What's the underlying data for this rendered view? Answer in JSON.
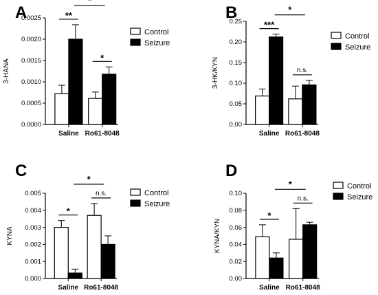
{
  "legend": {
    "control_label": "Control",
    "seizure_label": "Seizure"
  },
  "colors": {
    "control_fill": "#ffffff",
    "seizure_fill": "#000000",
    "stroke": "#000000"
  },
  "chart_data": [
    {
      "panel": "A",
      "type": "bar",
      "ylabel": "3-HANA",
      "categories": [
        "Saline",
        "Ro61-8048"
      ],
      "ylim": [
        0,
        0.0025
      ],
      "yticks": [
        "0.0000",
        "0.0005",
        "0.0010",
        "0.0015",
        "0.0020",
        "0.0025"
      ],
      "series": [
        {
          "name": "Control",
          "values": [
            0.00072,
            0.00061
          ],
          "errors": [
            0.0002,
            0.00015
          ]
        },
        {
          "name": "Seizure",
          "values": [
            0.002,
            0.00118
          ],
          "errors": [
            0.00034,
            0.00017
          ]
        }
      ],
      "significance": [
        {
          "label": "**",
          "type": "within",
          "category": 0
        },
        {
          "label": "*",
          "type": "within",
          "category": 1
        },
        {
          "label": "*",
          "type": "between"
        }
      ]
    },
    {
      "panel": "B",
      "type": "bar",
      "ylabel": "3-HK/KYN",
      "categories": [
        "Saline",
        "Ro61-8048"
      ],
      "ylim": [
        0,
        0.25
      ],
      "yticks": [
        "0.00",
        "0.05",
        "0.10",
        "0.15",
        "0.20",
        "0.25"
      ],
      "series": [
        {
          "name": "Control",
          "values": [
            0.069,
            0.062
          ],
          "errors": [
            0.017,
            0.031
          ]
        },
        {
          "name": "Seizure",
          "values": [
            0.212,
            0.096
          ],
          "errors": [
            0.007,
            0.011
          ]
        }
      ],
      "significance": [
        {
          "label": "***",
          "type": "within",
          "category": 0
        },
        {
          "label": "n.s.",
          "type": "within",
          "category": 1
        },
        {
          "label": "*",
          "type": "between"
        }
      ]
    },
    {
      "panel": "C",
      "type": "bar",
      "ylabel": "KYNA",
      "categories": [
        "Saline",
        "Ro61-8048"
      ],
      "ylim": [
        0,
        0.005
      ],
      "yticks": [
        "0.000",
        "0.001",
        "0.002",
        "0.003",
        "0.004",
        "0.005"
      ],
      "series": [
        {
          "name": "Control",
          "values": [
            0.003,
            0.0037
          ],
          "errors": [
            0.0004,
            0.0007
          ]
        },
        {
          "name": "Seizure",
          "values": [
            0.00032,
            0.002
          ],
          "errors": [
            0.00023,
            0.0005
          ]
        }
      ],
      "significance": [
        {
          "label": "*",
          "type": "within",
          "category": 0
        },
        {
          "label": "n.s.",
          "type": "within",
          "category": 1
        },
        {
          "label": "*",
          "type": "between"
        }
      ]
    },
    {
      "panel": "D",
      "type": "bar",
      "ylabel": "KYNA/KYN",
      "categories": [
        "Saline",
        "Ro61-8048"
      ],
      "ylim": [
        0,
        0.1
      ],
      "yticks": [
        "0.00",
        "0.02",
        "0.04",
        "0.06",
        "0.08",
        "0.10"
      ],
      "series": [
        {
          "name": "Control",
          "values": [
            0.049,
            0.046
          ],
          "errors": [
            0.014,
            0.036
          ]
        },
        {
          "name": "Seizure",
          "values": [
            0.024,
            0.063
          ],
          "errors": [
            0.006,
            0.003
          ]
        }
      ],
      "significance": [
        {
          "label": "*",
          "type": "within",
          "category": 0
        },
        {
          "label": "n.s.",
          "type": "within",
          "category": 1
        },
        {
          "label": "*",
          "type": "between"
        }
      ]
    }
  ]
}
